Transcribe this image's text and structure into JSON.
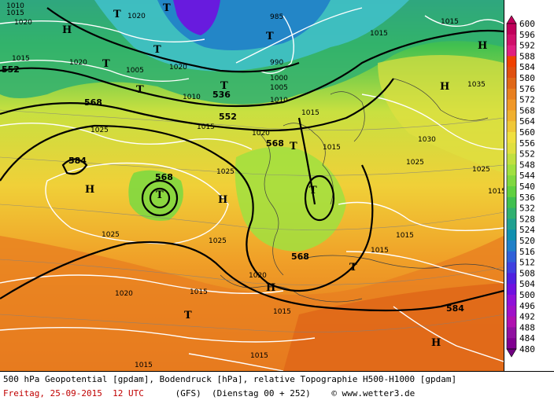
{
  "legend": {
    "line1": "500 hPa Geopotential [gpdam], Bodendruck [hPa], relative Topographie H500-H1000 [gpdam]",
    "date": "Freitag, 25-09-2015",
    "time": "12 UTC",
    "model": "(GFS)",
    "forecast": "(Dienstag 00 + 252)",
    "credit": "© www.wetter3.de"
  },
  "colorscale": {
    "ticks": [
      "600",
      "596",
      "592",
      "588",
      "584",
      "580",
      "576",
      "572",
      "568",
      "564",
      "560",
      "556",
      "552",
      "548",
      "544",
      "540",
      "536",
      "532",
      "528",
      "524",
      "520",
      "516",
      "512",
      "508",
      "504",
      "500",
      "496",
      "492",
      "488",
      "484",
      "480"
    ],
    "colors": [
      "#c0005a",
      "#d0106a",
      "#e02080",
      "#f04000",
      "#e05010",
      "#e06818",
      "#e88020",
      "#f09828",
      "#f0b030",
      "#f0c838",
      "#f0e040",
      "#e0e040",
      "#c0e040",
      "#a0e040",
      "#80d840",
      "#60d040",
      "#40c050",
      "#30b070",
      "#20a090",
      "#1090b0",
      "#2080c8",
      "#3060d8",
      "#4040e0",
      "#5020e0",
      "#7010e0",
      "#9010d8",
      "#a010c8",
      "#b010b0",
      "#9010a0",
      "#800090",
      "#700080"
    ]
  },
  "map": {
    "geopotential_labels": [
      "552",
      "536",
      "552",
      "568",
      "568",
      "568",
      "584",
      "584",
      "568"
    ],
    "pressure_labels": [
      "1020",
      "1025",
      "1020",
      "1015",
      "1010",
      "1015",
      "1020",
      "1020",
      "990",
      "1000",
      "1005",
      "1010",
      "985",
      "1015",
      "1020",
      "1015",
      "1025",
      "1030",
      "1025",
      "1025",
      "1025",
      "1015",
      "1015",
      "1020",
      "1015",
      "1015",
      "1020",
      "1015",
      "1015",
      "1015",
      "1010",
      "1005",
      "1035",
      "1025",
      "1015",
      "1015",
      "1015"
    ],
    "highs": [
      "H",
      "H",
      "H",
      "H",
      "H",
      "H",
      "H"
    ],
    "lows": [
      "T",
      "T",
      "T",
      "T",
      "T",
      "T",
      "T",
      "T",
      "T",
      "T",
      "T",
      "T"
    ]
  }
}
